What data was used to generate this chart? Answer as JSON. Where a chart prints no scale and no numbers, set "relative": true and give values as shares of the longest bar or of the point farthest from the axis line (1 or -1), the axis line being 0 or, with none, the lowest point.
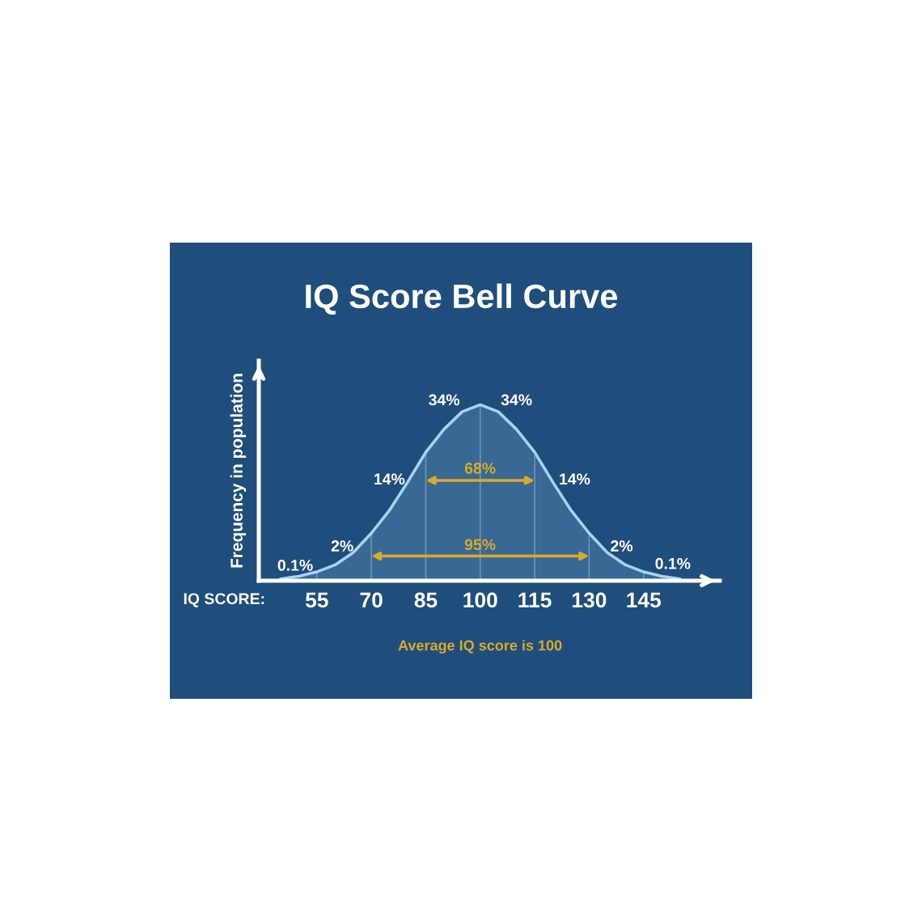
{
  "chart_data": {
    "type": "area",
    "title": "IQ Score Bell Curve",
    "xlabel": "IQ SCORE:",
    "ylabel": "Frequency in population",
    "relative": true,
    "x": [
      45,
      50,
      55,
      60,
      65,
      70,
      75,
      80,
      85,
      90,
      95,
      100,
      105,
      110,
      115,
      120,
      125,
      130,
      135,
      140,
      145,
      150,
      155
    ],
    "series": [
      {
        "color": "#a6d3f3",
        "values": [
          0.01,
          0.025,
          0.05,
          0.09,
          0.16,
          0.27,
          0.4,
          0.56,
          0.73,
          0.86,
          0.96,
          1.0,
          0.96,
          0.86,
          0.73,
          0.56,
          0.4,
          0.27,
          0.16,
          0.09,
          0.05,
          0.025,
          0.01
        ]
      }
    ],
    "xlim": [
      39,
      166
    ],
    "xticks": [
      55,
      70,
      85,
      100,
      115,
      130,
      145
    ],
    "grid": "x",
    "line_style": "solid",
    "annotations": [
      "0.1%",
      "2%",
      "14%",
      "34%",
      "34%",
      "14%",
      "2%",
      "0.1%",
      "68%",
      "95%",
      "Average IQ score is 100"
    ]
  }
}
